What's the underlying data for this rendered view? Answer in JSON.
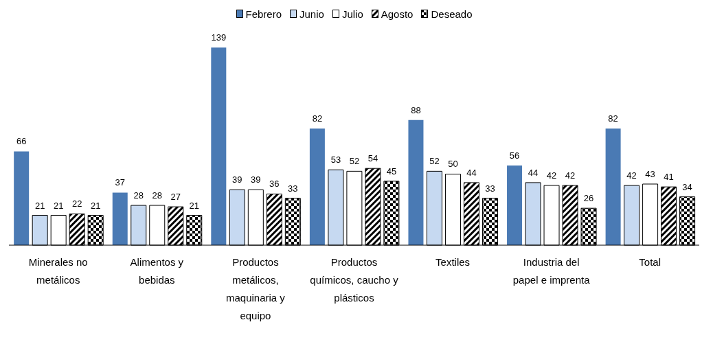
{
  "chart_data": {
    "type": "bar",
    "categories": [
      "Minerales no metálicos",
      "Alimentos y bebidas",
      "Productos metálicos, maquinaria y equipo",
      "Productos químicos, caucho y plásticos",
      "Textiles",
      "Industria del papel e imprenta",
      "Total"
    ],
    "series": [
      {
        "name": "Febrero",
        "color": "#4a7ab4",
        "values": [
          66,
          37,
          139,
          82,
          88,
          56,
          82
        ]
      },
      {
        "name": "Junio",
        "color": "#c6d9f1",
        "values": [
          21,
          28,
          39,
          53,
          52,
          44,
          42
        ]
      },
      {
        "name": "Julio",
        "color": "#ffffff",
        "values": [
          21,
          28,
          39,
          52,
          50,
          42,
          43
        ]
      },
      {
        "name": "Agosto",
        "color": "#000000",
        "values": [
          22,
          27,
          36,
          54,
          44,
          42,
          41
        ]
      },
      {
        "name": "Deseado",
        "color": "#000000",
        "values": [
          21,
          21,
          33,
          45,
          33,
          26,
          34
        ]
      }
    ],
    "data_labels": true,
    "legend": "top"
  }
}
